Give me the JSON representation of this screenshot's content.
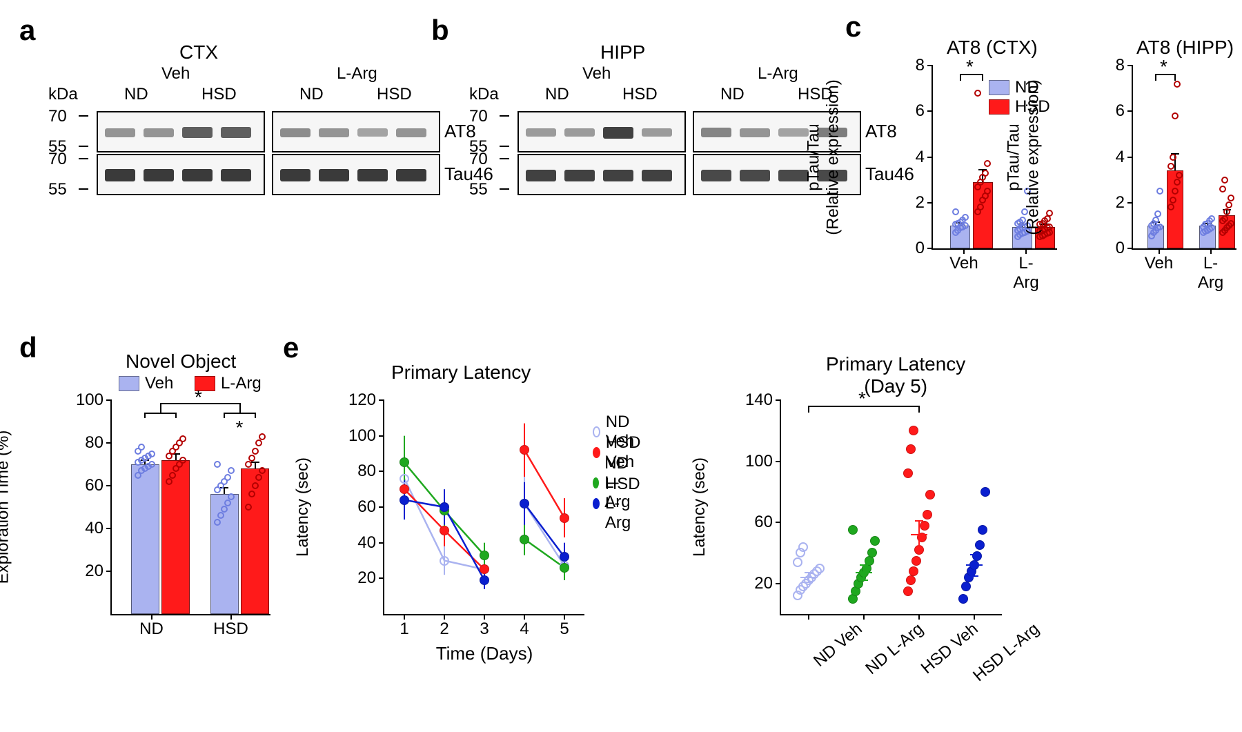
{
  "palette": {
    "nd": "#aab3f0",
    "hsd": "#ff1a1a",
    "nd_outline": "#6d7de0",
    "hsd_outline": "#b30000",
    "green": "#1fa81f",
    "blue": "#0a1fcf"
  },
  "panel_a": {
    "label": "a",
    "region": "CTX",
    "treatments": [
      "Veh",
      "L-Arg"
    ],
    "lanes": [
      "ND",
      "HSD",
      "ND",
      "HSD"
    ],
    "kda_label": "kDa",
    "kda_ticks": [
      70,
      55,
      70,
      55
    ],
    "rows": [
      "AT8",
      "Tau46"
    ],
    "band_intensity": {
      "AT8": [
        [
          0.35,
          0.35,
          0.7,
          0.7
        ],
        [
          0.4,
          0.35,
          0.25,
          0.35
        ]
      ],
      "Tau46": [
        [
          0.95,
          0.95,
          0.95,
          0.95
        ],
        [
          0.95,
          0.95,
          0.95,
          0.95
        ]
      ]
    }
  },
  "panel_b": {
    "label": "b",
    "region": "HIPP",
    "treatments": [
      "Veh",
      "L-Arg"
    ],
    "lanes": [
      "ND",
      "HSD",
      "ND",
      "HSD"
    ],
    "kda_label": "kDa",
    "kda_ticks": [
      70,
      55,
      70,
      55
    ],
    "rows": [
      "AT8",
      "Tau46"
    ],
    "band_intensity": {
      "AT8": [
        [
          0.3,
          0.3,
          0.9,
          0.3
        ],
        [
          0.45,
          0.35,
          0.25,
          0.5
        ]
      ],
      "Tau46": [
        [
          0.9,
          0.9,
          0.9,
          0.9
        ],
        [
          0.85,
          0.85,
          0.85,
          0.85
        ]
      ]
    }
  },
  "panel_c": {
    "label": "c",
    "charts": [
      {
        "title": "AT8 (CTX)",
        "ylabel": "pTau/Tau\n(Relative expression)",
        "ylim": [
          0,
          8
        ],
        "ytick_step": 2,
        "groups": [
          "Veh",
          "L-Arg"
        ],
        "legend": [
          [
            "ND",
            "nd"
          ],
          [
            "HSD",
            "hsd"
          ]
        ],
        "bars": [
          {
            "group": "Veh",
            "series": "ND",
            "mean": 1.0,
            "sem": 0.12,
            "points": [
              0.7,
              0.8,
              0.9,
              0.95,
              1.0,
              1.05,
              1.1,
              1.15,
              1.25,
              1.35,
              1.6
            ]
          },
          {
            "group": "Veh",
            "series": "HSD",
            "mean": 2.9,
            "sem": 0.55,
            "points": [
              1.6,
              1.8,
              2.1,
              2.3,
              2.5,
              2.7,
              2.9,
              3.1,
              3.3,
              3.7,
              6.8
            ]
          },
          {
            "group": "L-Arg",
            "series": "ND",
            "mean": 0.95,
            "sem": 0.12,
            "points": [
              0.5,
              0.6,
              0.65,
              0.7,
              0.75,
              0.8,
              0.85,
              0.9,
              0.95,
              1.0,
              1.1,
              1.15,
              1.25,
              1.6,
              2.5
            ]
          },
          {
            "group": "L-Arg",
            "series": "HSD",
            "mean": 0.95,
            "sem": 0.11,
            "points": [
              0.5,
              0.55,
              0.6,
              0.65,
              0.7,
              0.75,
              0.8,
              0.85,
              0.9,
              0.95,
              1.05,
              1.1,
              1.2,
              1.3,
              1.55
            ]
          }
        ],
        "sig": [
          {
            "from": 0,
            "to": 1,
            "label": "*"
          }
        ]
      },
      {
        "title": "AT8 (HIPP)",
        "ylabel": "pTau/Tau\n(Relative expression)",
        "ylim": [
          0,
          8
        ],
        "ytick_step": 2,
        "groups": [
          "Veh",
          "L-Arg"
        ],
        "bars": [
          {
            "group": "Veh",
            "series": "ND",
            "mean": 1.0,
            "sem": 0.15,
            "points": [
              0.55,
              0.7,
              0.8,
              0.9,
              0.95,
              1.0,
              1.1,
              1.25,
              1.5,
              2.5
            ]
          },
          {
            "group": "Veh",
            "series": "HSD",
            "mean": 3.4,
            "sem": 0.75,
            "points": [
              1.8,
              2.1,
              2.5,
              2.9,
              3.2,
              3.6,
              4.0,
              5.8,
              7.2
            ]
          },
          {
            "group": "L-Arg",
            "series": "ND",
            "mean": 1.0,
            "sem": 0.1,
            "points": [
              0.7,
              0.75,
              0.8,
              0.85,
              0.9,
              0.95,
              1.05,
              1.1,
              1.2,
              1.3
            ]
          },
          {
            "group": "L-Arg",
            "series": "HSD",
            "mean": 1.45,
            "sem": 0.25,
            "points": [
              0.7,
              0.8,
              0.9,
              1.0,
              1.1,
              1.2,
              1.3,
              1.6,
              1.9,
              2.2,
              2.6,
              3.0
            ]
          }
        ],
        "sig": [
          {
            "from": 0,
            "to": 1,
            "label": "*"
          }
        ]
      }
    ]
  },
  "panel_d": {
    "label": "d",
    "title": "Novel Object",
    "ylabel": "Exploration Time (%)",
    "ylim": [
      0,
      100
    ],
    "yticks": [
      20,
      40,
      60,
      80,
      100
    ],
    "groups": [
      "ND",
      "HSD"
    ],
    "legend": [
      [
        "Veh",
        "nd"
      ],
      [
        "L-Arg",
        "hsd"
      ]
    ],
    "bars": [
      {
        "group": "ND",
        "series": "Veh",
        "mean": 70,
        "sem": 2,
        "points": [
          65,
          67,
          68,
          69,
          70,
          71,
          72,
          73,
          74,
          75,
          76,
          78
        ]
      },
      {
        "group": "ND",
        "series": "L-Arg",
        "mean": 72,
        "sem": 3,
        "points": [
          62,
          65,
          68,
          70,
          72,
          74,
          76,
          78,
          80,
          82
        ]
      },
      {
        "group": "HSD",
        "series": "Veh",
        "mean": 56,
        "sem": 3,
        "points": [
          43,
          46,
          49,
          52,
          55,
          58,
          60,
          62,
          64,
          67,
          70
        ]
      },
      {
        "group": "HSD",
        "series": "L-Arg",
        "mean": 68,
        "sem": 3,
        "points": [
          50,
          56,
          60,
          64,
          67,
          70,
          73,
          76,
          80,
          83
        ]
      }
    ],
    "sig": [
      {
        "from_pair": [
          0,
          1
        ],
        "to_pair": [
          2,
          3
        ],
        "label": "*",
        "bracket": true
      },
      {
        "from": 2,
        "to": 3,
        "label": "*"
      }
    ]
  },
  "panel_e": {
    "label": "e",
    "line": {
      "title": "Primary Latency",
      "ylabel": "Latency (sec)",
      "xlabel": "Time (Days)",
      "ylim": [
        0,
        120
      ],
      "ytick_step": 20,
      "x": [
        1,
        2,
        3,
        4,
        5
      ],
      "xlim": [
        0.5,
        5.5
      ],
      "legend": [
        [
          "ND Veh",
          "nd"
        ],
        [
          "HSD Veh",
          "hsd"
        ],
        [
          "ND L-Arg",
          "green"
        ],
        [
          "HSD L-Arg",
          "blue"
        ]
      ],
      "series": [
        {
          "name": "ND Veh",
          "color": "nd",
          "open": true,
          "y": [
            76,
            30,
            25,
            62,
            27
          ],
          "sem": [
            14,
            8,
            6,
            16,
            8
          ]
        },
        {
          "name": "HSD Veh",
          "color": "hsd",
          "open": false,
          "y": [
            70,
            47,
            25,
            92,
            54
          ],
          "sem": [
            12,
            9,
            6,
            15,
            11
          ]
        },
        {
          "name": "ND L-Arg",
          "color": "green",
          "open": false,
          "y": [
            85,
            58,
            33,
            42,
            26
          ],
          "sem": [
            15,
            11,
            7,
            9,
            7
          ]
        },
        {
          "name": "HSD L-Arg",
          "color": "blue",
          "open": false,
          "y": [
            64,
            60,
            19,
            62,
            32
          ],
          "sem": [
            11,
            10,
            5,
            12,
            8
          ]
        }
      ]
    },
    "scatter": {
      "title": "Primary Latency\n(Day 5)",
      "ylabel": "Latency (sec)",
      "ylim": [
        0,
        140
      ],
      "yticks": [
        20,
        60,
        100,
        140
      ],
      "groups": [
        "ND Veh",
        "ND L-Arg",
        "HSD Veh",
        "HSD L-Arg"
      ],
      "colors": [
        "nd",
        "green",
        "hsd",
        "blue"
      ],
      "means": [
        24,
        27,
        52,
        32
      ],
      "sems": [
        3,
        5,
        9,
        7
      ],
      "points": [
        [
          12,
          16,
          18,
          20,
          22,
          24,
          26,
          28,
          30,
          34,
          40,
          44
        ],
        [
          10,
          15,
          20,
          24,
          27,
          30,
          35,
          40,
          48,
          55
        ],
        [
          15,
          22,
          28,
          35,
          42,
          50,
          58,
          65,
          78,
          92,
          108,
          120
        ],
        [
          10,
          18,
          24,
          28,
          32,
          38,
          45,
          55,
          80
        ]
      ],
      "sig": [
        {
          "from": 0,
          "to": 2,
          "label": "*"
        }
      ]
    }
  }
}
